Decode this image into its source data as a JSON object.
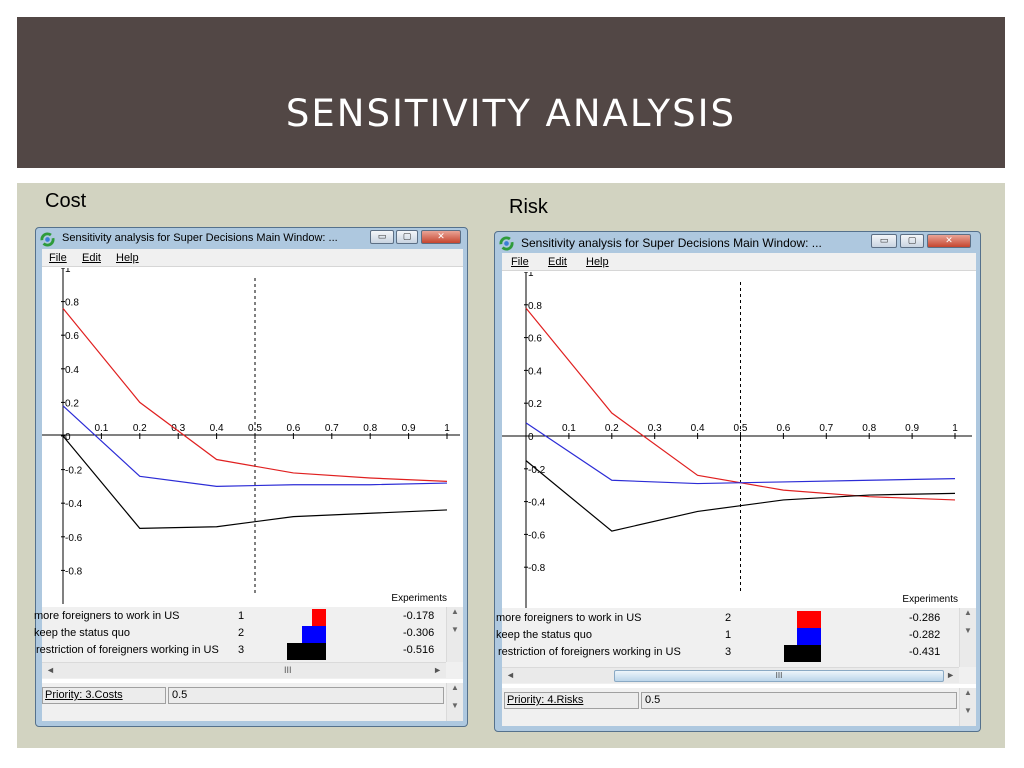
{
  "slide": {
    "title": "SENSITIVITY ANALYSIS",
    "colors": {
      "banner": "#524745",
      "content_bg": "#d2d3c1"
    }
  },
  "panels": [
    {
      "label": "Cost",
      "window": {
        "title": "Sensitivity analysis for Super Decisions Main Window: ...",
        "buttons": {
          "minimize": "▭",
          "maximize": "▢",
          "close": "✕"
        },
        "menu": [
          "File",
          "Edit",
          "Help"
        ]
      },
      "plot": {
        "x_label": "Experiments",
        "x_ticks": [
          "0.1",
          "0.2",
          "0.3",
          "0.4",
          "0.5",
          "0.6",
          "0.7",
          "0.8",
          "0.9",
          "1"
        ],
        "y_ticks": [
          "1",
          "0.8",
          "0.6",
          "0.4",
          "0.2",
          "0",
          "-0.2",
          "-0.4",
          "-0.6",
          "-0.8"
        ],
        "marker_x": 0.5
      },
      "alternatives": [
        {
          "name": "more foreigners to work in US",
          "rank": "1",
          "value": "-0.178"
        },
        {
          "name": "keep the status quo",
          "rank": "2",
          "value": "-0.306"
        },
        {
          "name": "restriction of foreigners working in US",
          "rank": "3",
          "value": "-0.516"
        }
      ],
      "priority_label": "Priority: 3.Costs",
      "priority_value": "0.5",
      "scroll_glyph": "III"
    },
    {
      "label": "Risk",
      "window": {
        "title": "Sensitivity analysis for Super Decisions Main Window: ...",
        "buttons": {
          "minimize": "▭",
          "maximize": "▢",
          "close": "✕"
        },
        "menu": [
          "File",
          "Edit",
          "Help"
        ]
      },
      "plot": {
        "x_label": "Experiments",
        "x_ticks": [
          "0.1",
          "0.2",
          "0.3",
          "0.4",
          "0.5",
          "0.6",
          "0.7",
          "0.8",
          "0.9",
          "1"
        ],
        "y_ticks": [
          "1",
          "0.8",
          "0.6",
          "0.4",
          "0.2",
          "0",
          "-0.2",
          "-0.4",
          "-0.6",
          "-0.8"
        ],
        "marker_x": 0.5
      },
      "alternatives": [
        {
          "name": "more foreigners to work in US",
          "rank": "2",
          "value": "-0.286"
        },
        {
          "name": "keep the status quo",
          "rank": "1",
          "value": "-0.282"
        },
        {
          "name": "restriction of foreigners working in US",
          "rank": "3",
          "value": "-0.431"
        }
      ],
      "priority_label": "Priority: 4.Risks",
      "priority_value": "0.5",
      "scroll_glyph": "III"
    }
  ],
  "chart_data": [
    {
      "type": "line",
      "title": "Cost",
      "xlabel": "Experiments",
      "ylabel": "",
      "xlim": [
        0,
        1
      ],
      "ylim": [
        -1,
        1
      ],
      "x": [
        0,
        0.2,
        0.4,
        0.6,
        0.8,
        1
      ],
      "series": [
        {
          "name": "more foreigners to work in US",
          "color": "#e02020",
          "values": [
            0.76,
            0.2,
            -0.14,
            -0.22,
            -0.25,
            -0.27
          ]
        },
        {
          "name": "keep the status quo",
          "color": "#2c2cd6",
          "values": [
            0.18,
            -0.24,
            -0.3,
            -0.29,
            -0.29,
            -0.28
          ]
        },
        {
          "name": "restriction of foreigners working in US",
          "color": "#000000",
          "values": [
            0.0,
            -0.55,
            -0.54,
            -0.48,
            -0.46,
            -0.44
          ]
        }
      ]
    },
    {
      "type": "line",
      "title": "Risk",
      "xlabel": "Experiments",
      "ylabel": "",
      "xlim": [
        0,
        1
      ],
      "ylim": [
        -1,
        1
      ],
      "x": [
        0,
        0.2,
        0.4,
        0.6,
        0.8,
        1
      ],
      "series": [
        {
          "name": "more foreigners to work in US",
          "color": "#e02020",
          "values": [
            0.78,
            0.14,
            -0.24,
            -0.33,
            -0.37,
            -0.39
          ]
        },
        {
          "name": "keep the status quo",
          "color": "#2c2cd6",
          "values": [
            0.08,
            -0.27,
            -0.29,
            -0.28,
            -0.27,
            -0.26
          ]
        },
        {
          "name": "restriction of foreigners working in US",
          "color": "#000000",
          "values": [
            -0.15,
            -0.58,
            -0.46,
            -0.39,
            -0.36,
            -0.35
          ]
        }
      ]
    }
  ]
}
